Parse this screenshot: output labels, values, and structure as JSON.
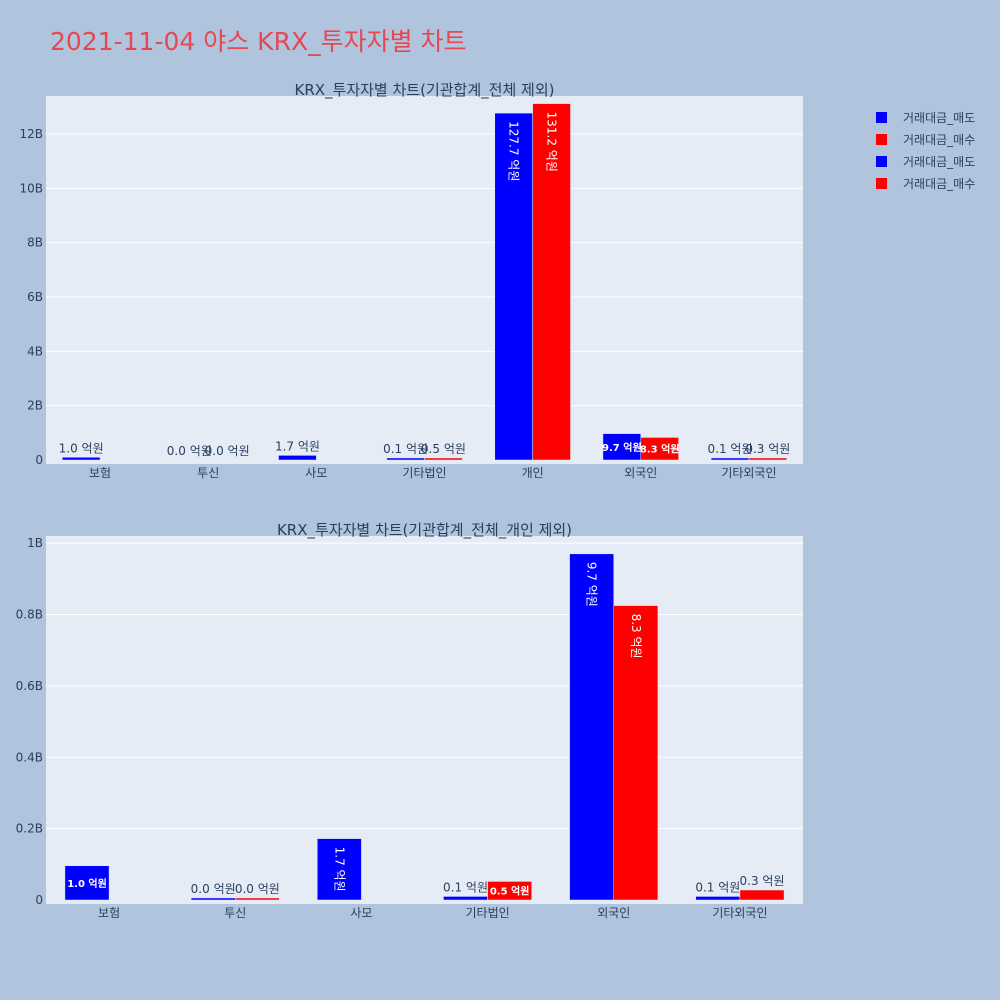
{
  "page": {
    "title": "2021-11-04 야스 KRX_투자자별 차트"
  },
  "legend": [
    {
      "label": "거래대금_매도",
      "color": "#0000ff"
    },
    {
      "label": "거래대금_매수",
      "color": "#ff0000"
    },
    {
      "label": "거래대금_매도",
      "color": "#0000ff"
    },
    {
      "label": "거래대금_매수",
      "color": "#ff0000"
    }
  ],
  "chart_data": [
    {
      "type": "bar",
      "title": "KRX_투자자별 차트(기관합계_전체 제외)",
      "categories": [
        "보험",
        "투신",
        "사모",
        "기타법인",
        "개인",
        "외국인",
        "기타외국인"
      ],
      "ylim": [
        0,
        13.4
      ],
      "yticks": [
        0,
        2,
        4,
        6,
        8,
        10,
        12
      ],
      "ytick_labels": [
        "0",
        "2B",
        "4B",
        "6B",
        "8B",
        "10B",
        "12B"
      ],
      "grid": true,
      "series": [
        {
          "name": "거래대금_매도",
          "color": "#0000ff",
          "values": [
            0.1,
            0.0,
            0.17,
            0.01,
            12.77,
            0.97,
            0.01
          ],
          "labels": [
            "1.0 억원",
            "0.0 억원",
            "1.7 억원",
            "0.1 억원",
            "127.7 억원",
            "9.7 억원",
            "0.1 억원"
          ]
        },
        {
          "name": "거래대금_매수",
          "color": "#ff0000",
          "values": [
            0.0,
            0.0,
            0.0,
            0.05,
            13.12,
            0.83,
            0.03
          ],
          "labels": [
            "",
            "0.0 억원",
            "",
            "0.5 억원",
            "131.2 억원",
            "8.3 억원",
            "0.3 억원"
          ]
        }
      ]
    },
    {
      "type": "bar",
      "title": "KRX_투자자별 차트(기관합계_전체_개인 제외)",
      "categories": [
        "보험",
        "투신",
        "사모",
        "기타법인",
        "외국인",
        "기타외국인"
      ],
      "ylim": [
        0,
        1.02
      ],
      "yticks": [
        0,
        0.2,
        0.4,
        0.6,
        0.8,
        1.0
      ],
      "ytick_labels": [
        "0",
        "0.2B",
        "0.4B",
        "0.6B",
        "0.8B",
        "1B"
      ],
      "grid": true,
      "series": [
        {
          "name": "거래대금_매도",
          "color": "#0000ff",
          "values": [
            0.096,
            0.002,
            0.172,
            0.01,
            0.97,
            0.01
          ],
          "labels": [
            "1.0 억원",
            "0.0 억원",
            "1.7 억원",
            "0.1 억원",
            "9.7 억원",
            "0.1 억원"
          ]
        },
        {
          "name": "거래대금_매수",
          "color": "#ff0000",
          "values": [
            0.0,
            0.002,
            0.0,
            0.052,
            0.825,
            0.028
          ],
          "labels": [
            "",
            "0.0 억원",
            "",
            "0.5 억원",
            "8.3 억원",
            "0.3 억원"
          ]
        }
      ]
    }
  ]
}
